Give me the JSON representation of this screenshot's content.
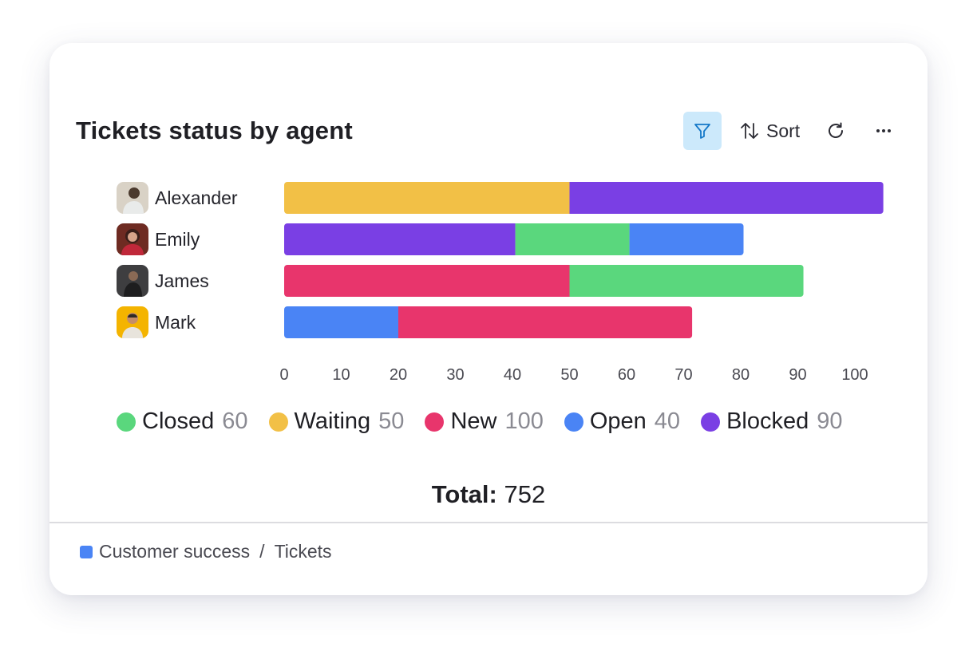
{
  "widget": {
    "title": "Tickets status by agent",
    "sort_label": "Sort",
    "total_label": "Total:",
    "total_value": "752",
    "breadcrumb": {
      "board": "Customer success",
      "separator": "/",
      "view": "Tickets",
      "color": "#4a84f5"
    },
    "accent_color": "#cce9fb"
  },
  "agents": [
    {
      "name": "Alexander",
      "avatar_colors": [
        "#d9d2c6",
        "#4b3a2e"
      ]
    },
    {
      "name": "Emily",
      "avatar_colors": [
        "#b04a3c",
        "#3a1f1a"
      ]
    },
    {
      "name": "James",
      "avatar_colors": [
        "#3e3e40",
        "#1e1e1f"
      ]
    },
    {
      "name": "Mark",
      "avatar_colors": [
        "#f4b400",
        "#2f2a26"
      ]
    }
  ],
  "legend": [
    {
      "label": "Closed",
      "count": "60",
      "color": "#5ad77d"
    },
    {
      "label": "Waiting",
      "count": "50",
      "color": "#f2c046"
    },
    {
      "label": "New",
      "count": "100",
      "color": "#e8356c"
    },
    {
      "label": "Open",
      "count": "40",
      "color": "#4a84f5"
    },
    {
      "label": "Blocked",
      "count": "90",
      "color": "#7a3fe4"
    }
  ],
  "chart_data": {
    "type": "bar",
    "orientation": "horizontal",
    "stacked": true,
    "categories": [
      "Alexander",
      "Emily",
      "James",
      "Mark"
    ],
    "xlim": [
      0,
      100
    ],
    "xticks": [
      "0",
      "10",
      "20",
      "30",
      "40",
      "50",
      "60",
      "70",
      "80",
      "90",
      "100"
    ],
    "segments": [
      [
        {
          "status": "Waiting",
          "value": 50,
          "color": "#f2c046"
        },
        {
          "status": "Blocked",
          "value": 55,
          "color": "#7a3fe4"
        }
      ],
      [
        {
          "status": "Blocked",
          "value": 40.5,
          "color": "#7a3fe4"
        },
        {
          "status": "Closed",
          "value": 20,
          "color": "#5ad77d"
        },
        {
          "status": "Open",
          "value": 20,
          "color": "#4a84f5"
        }
      ],
      [
        {
          "status": "New",
          "value": 50,
          "color": "#e8356c"
        },
        {
          "status": "Closed",
          "value": 41,
          "color": "#5ad77d"
        }
      ],
      [
        {
          "status": "Open",
          "value": 20,
          "color": "#4a84f5"
        },
        {
          "status": "New",
          "value": 51.5,
          "color": "#e8356c"
        }
      ]
    ],
    "grid": false,
    "legend_position": "bottom"
  }
}
